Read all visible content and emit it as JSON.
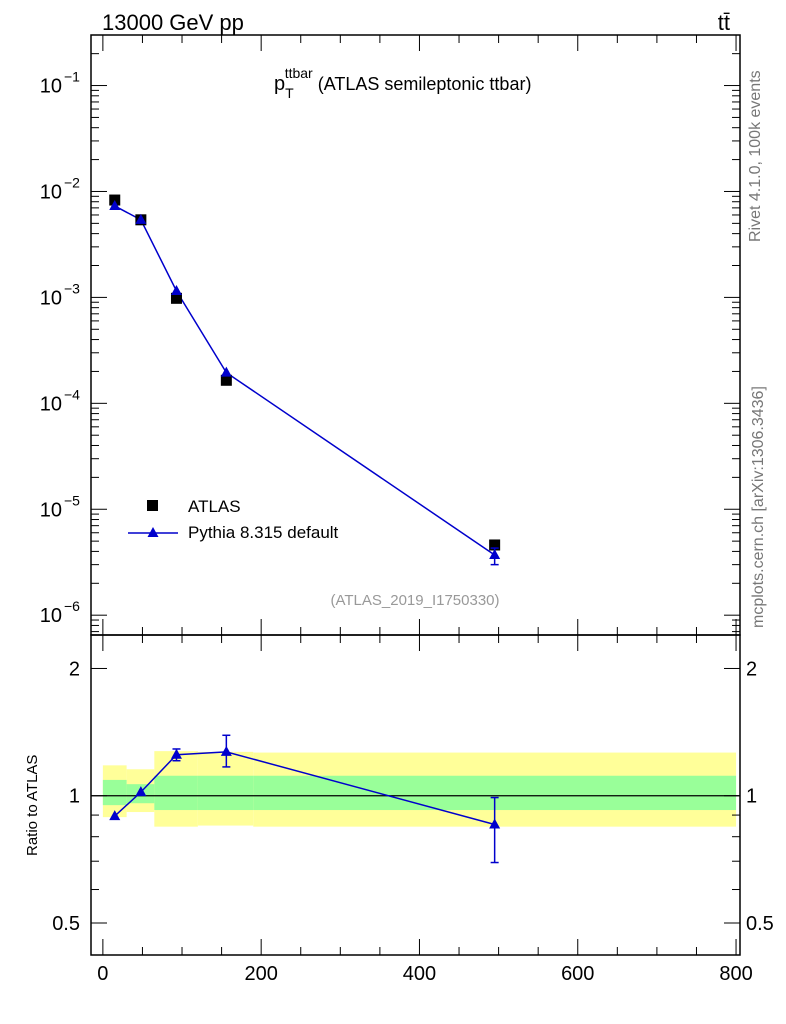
{
  "header": {
    "left": "13000 GeV pp",
    "right": "tt̄"
  },
  "side_labels": {
    "rivet": "Rivet 4.1.0,  100k events",
    "mcplots": "mcplots.cern.ch [arXiv:1306.3436]"
  },
  "colors": {
    "mc": "#0000cc",
    "data": "#000000",
    "band_outer": "#ffff99",
    "band_inner": "#99ff99",
    "analysis_id": "#999999"
  },
  "chart_data": [
    {
      "type": "scatter",
      "title_main": "p",
      "title_sub": "T",
      "title_sup": "ttbar",
      "title_rest": " (ATLAS semileptonic ttbar)",
      "analysis_id": "(ATLAS_2019_I1750330)",
      "yscale": "log",
      "xlim": [
        -15,
        805
      ],
      "ylim": [
        6.5e-07,
        0.3
      ],
      "ytick_labels": [
        {
          "m": "10",
          "e": "−6",
          "v": 1e-06
        },
        {
          "m": "10",
          "e": "−5",
          "v": 1e-05
        },
        {
          "m": "10",
          "e": "−4",
          "v": 0.0001
        },
        {
          "m": "10",
          "e": "−3",
          "v": 0.001
        },
        {
          "m": "10",
          "e": "−2",
          "v": 0.01
        },
        {
          "m": "10",
          "e": "−1",
          "v": 0.1
        }
      ],
      "legend": {
        "placement": "lower-left",
        "entries": [
          "ATLAS",
          "Pythia 8.315 default"
        ]
      },
      "series": [
        {
          "name": "ATLAS",
          "marker": "square",
          "x": [
            15,
            48,
            93,
            156,
            495
          ],
          "y": [
            0.0083,
            0.0054,
            0.00098,
            0.000165,
            4.6e-06
          ]
        },
        {
          "name": "Pythia 8.315 default",
          "marker": "triangle",
          "x": [
            15,
            48,
            93,
            156,
            495
          ],
          "y": [
            0.0073,
            0.0054,
            0.00115,
            0.000195,
            3.7e-06
          ],
          "yerr_low": [
            0,
            0,
            0,
            0,
            7e-07
          ],
          "yerr_high": [
            0,
            0,
            0,
            0,
            6e-07
          ]
        }
      ]
    },
    {
      "type": "line",
      "ylabel": "Ratio to ATLAS",
      "yscale": "log",
      "xlim": [
        -15,
        805
      ],
      "ylim": [
        0.42,
        2.4
      ],
      "xticks": [
        0,
        200,
        400,
        600,
        800
      ],
      "xtick_labels": [
        "0",
        "200",
        "400",
        "600",
        "800"
      ],
      "ytick_labels": [
        {
          "label": "0.5",
          "v": 0.5
        },
        {
          "label": "1",
          "v": 1
        },
        {
          "label": "2",
          "v": 2
        }
      ],
      "reference_line": 1,
      "bands": [
        {
          "x0": 0,
          "x1": 30,
          "outer": [
            0.89,
            1.18
          ],
          "inner": [
            0.95,
            1.09
          ]
        },
        {
          "x0": 30,
          "x1": 65,
          "outer": [
            0.915,
            1.155
          ],
          "inner": [
            0.96,
            1.065
          ]
        },
        {
          "x0": 65,
          "x1": 120,
          "outer": [
            0.845,
            1.275
          ],
          "inner": [
            0.925,
            1.115
          ]
        },
        {
          "x0": 120,
          "x1": 190,
          "outer": [
            0.85,
            1.27
          ],
          "inner": [
            0.925,
            1.115
          ]
        },
        {
          "x0": 190,
          "x1": 800,
          "outer": [
            0.845,
            1.265
          ],
          "inner": [
            0.925,
            1.115
          ]
        }
      ],
      "series": [
        {
          "name": "Pythia 8.315 default",
          "x": [
            15,
            48,
            93,
            156,
            495
          ],
          "y": [
            0.895,
            1.02,
            1.25,
            1.27,
            0.855
          ],
          "yerr_low": [
            0,
            0,
            0.04,
            0.1,
            0.16
          ],
          "yerr_high": [
            0,
            0,
            0.04,
            0.12,
            0.135
          ]
        }
      ]
    }
  ]
}
